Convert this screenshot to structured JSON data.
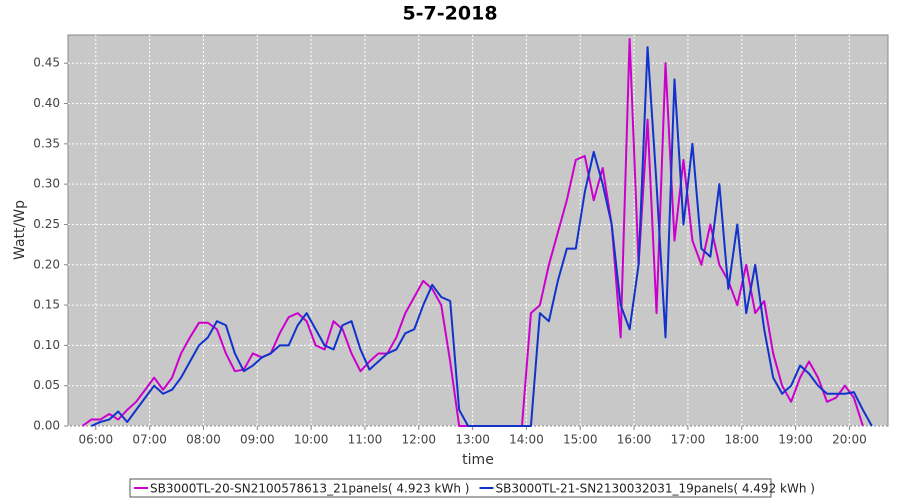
{
  "chart_data": {
    "type": "line",
    "title": "5-7-2018",
    "x_label": "time",
    "y_label": "Watt/Wp",
    "grid": true,
    "legend": "bottom",
    "xlim": [
      329,
      1243
    ],
    "ylim": [
      0,
      0.485
    ],
    "xticks": [
      {
        "value": 360,
        "label": "06:00"
      },
      {
        "value": 420,
        "label": "07:00"
      },
      {
        "value": 480,
        "label": "08:00"
      },
      {
        "value": 540,
        "label": "09:00"
      },
      {
        "value": 600,
        "label": "10:00"
      },
      {
        "value": 660,
        "label": "11:00"
      },
      {
        "value": 720,
        "label": "12:00"
      },
      {
        "value": 780,
        "label": "13:00"
      },
      {
        "value": 840,
        "label": "14:00"
      },
      {
        "value": 900,
        "label": "15:00"
      },
      {
        "value": 960,
        "label": "16:00"
      },
      {
        "value": 1020,
        "label": "17:00"
      },
      {
        "value": 1080,
        "label": "18:00"
      },
      {
        "value": 1140,
        "label": "19:00"
      },
      {
        "value": 1200,
        "label": "20:00"
      }
    ],
    "yticks": [
      {
        "value": 0,
        "label": "0.00"
      },
      0.05,
      {
        "value": 0.1,
        "label": "0.10"
      },
      0.15,
      {
        "value": 0.2,
        "label": "0.20"
      },
      0.25,
      {
        "value": 0.3,
        "label": "0.30"
      },
      0.35,
      {
        "value": 0.4,
        "label": "0.40"
      },
      0.45
    ],
    "x": [
      345,
      355,
      365,
      375,
      385,
      395,
      405,
      415,
      425,
      435,
      445,
      455,
      465,
      475,
      485,
      495,
      505,
      515,
      525,
      535,
      545,
      555,
      565,
      575,
      585,
      595,
      605,
      615,
      625,
      635,
      645,
      655,
      665,
      675,
      685,
      695,
      705,
      715,
      725,
      735,
      745,
      755,
      765,
      775,
      785,
      795,
      805,
      815,
      825,
      835,
      845,
      855,
      865,
      875,
      885,
      895,
      905,
      915,
      925,
      935,
      945,
      955,
      965,
      975,
      985,
      995,
      1005,
      1015,
      1025,
      1035,
      1045,
      1055,
      1065,
      1075,
      1085,
      1095,
      1105,
      1115,
      1125,
      1135,
      1145,
      1155,
      1165,
      1175,
      1185,
      1195,
      1205,
      1215,
      1225
    ],
    "series": [
      {
        "name": "SB3000TL-20-SN2100578613_21panels( 4.923 kWh )",
        "color": "#cc00cc",
        "values": [
          0,
          0.008,
          0.008,
          0.015,
          0.008,
          0.02,
          0.03,
          0.045,
          0.06,
          0.045,
          0.06,
          0.09,
          0.11,
          0.128,
          0.128,
          0.12,
          0.09,
          0.068,
          0.07,
          0.09,
          0.085,
          0.09,
          0.115,
          0.135,
          0.14,
          0.13,
          0.1,
          0.095,
          0.13,
          0.12,
          0.09,
          0.068,
          0.08,
          0.09,
          0.09,
          0.11,
          0.14,
          0.16,
          0.18,
          0.17,
          0.15,
          0.08,
          0,
          0,
          0,
          0,
          0,
          0,
          0,
          0,
          0.14,
          0.15,
          0.2,
          0.24,
          0.28,
          0.33,
          0.335,
          0.28,
          0.32,
          0.25,
          0.11,
          0.48,
          0.2,
          0.38,
          0.14,
          0.45,
          0.23,
          0.33,
          0.23,
          0.2,
          0.25,
          0.2,
          0.18,
          0.15,
          0.2,
          0.14,
          0.155,
          0.09,
          0.05,
          0.03,
          0.06,
          0.08,
          0.06,
          0.03,
          0.035,
          0.05,
          0.035,
          0,
          null
        ]
      },
      {
        "name": "SB3000TL-21-SN2130032031_19panels( 4.492 kWh )",
        "color": "#1133cc",
        "values": [
          null,
          0,
          0.005,
          0.008,
          0.018,
          0.005,
          0.02,
          0.035,
          0.05,
          0.04,
          0.045,
          0.06,
          0.08,
          0.1,
          0.11,
          0.13,
          0.125,
          0.09,
          0.068,
          0.075,
          0.085,
          0.09,
          0.1,
          0.1,
          0.125,
          0.14,
          0.12,
          0.1,
          0.095,
          0.125,
          0.13,
          0.095,
          0.07,
          0.08,
          0.09,
          0.095,
          0.115,
          0.12,
          0.15,
          0.175,
          0.16,
          0.155,
          0.02,
          0,
          0,
          0,
          0,
          0,
          0,
          0,
          0,
          0.14,
          0.13,
          0.18,
          0.22,
          0.22,
          0.29,
          0.34,
          0.3,
          0.25,
          0.15,
          0.12,
          0.2,
          0.47,
          0.3,
          0.11,
          0.43,
          0.25,
          0.35,
          0.22,
          0.21,
          0.3,
          0.17,
          0.25,
          0.14,
          0.2,
          0.12,
          0.06,
          0.04,
          0.05,
          0.075,
          0.065,
          0.05,
          0.04,
          0.04,
          0.04,
          0.042,
          0.02,
          0
        ]
      }
    ]
  }
}
